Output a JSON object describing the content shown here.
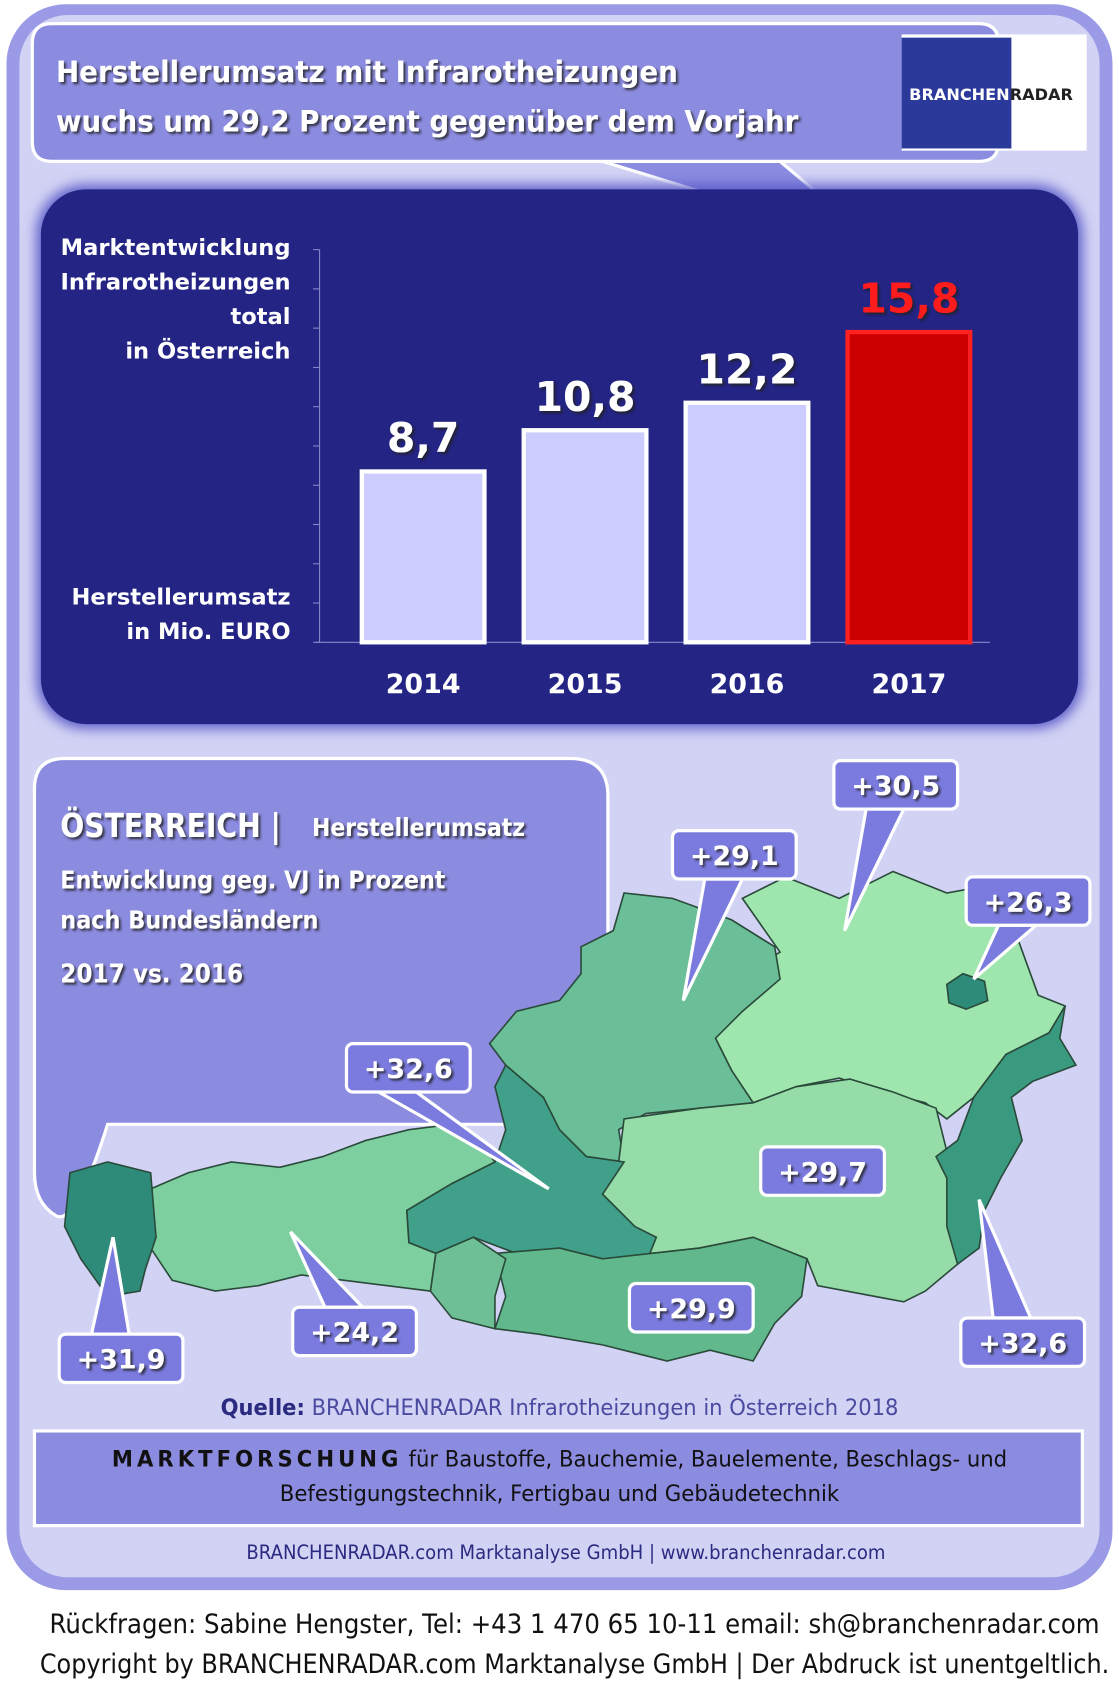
{
  "header": {
    "title": [
      "Herstellerumsatz mit Infrarotheizungen",
      "wuchs um 29,2 Prozent gegenüber dem Vorjahr"
    ],
    "logo": [
      "BRANCHEN",
      "RADAR"
    ]
  },
  "chart_data": {
    "type": "bar",
    "subtitle": [
      "Marktentwicklung",
      "Infrarotheizungen",
      "total",
      "in Österreich"
    ],
    "y_label": [
      "Herstellerumsatz",
      "in Mio. EURO"
    ],
    "categories": [
      "2014",
      "2015",
      "2016",
      "2017"
    ],
    "values": [
      8.7,
      10.8,
      12.2,
      15.8
    ],
    "value_labels": [
      "8,7",
      "10,8",
      "12,2",
      "15,8"
    ],
    "colors": [
      "#ccccff",
      "#ccccff",
      "#ccccff",
      "#cc0000"
    ],
    "ylim": [
      0,
      20
    ],
    "yticks": [
      0,
      2,
      4,
      6,
      8,
      10,
      12,
      14,
      16,
      18,
      20
    ]
  },
  "map": {
    "title": "ÖSTERREICH |",
    "title_suffix": "Herstellerumsatz",
    "subtitle": [
      "Entwicklung  geg. VJ in Prozent",
      "nach Bundesländern"
    ],
    "period": "2017 vs. 2016",
    "labels": [
      "+31,9",
      "+24,2",
      "+32,6",
      "+29,1",
      "+30,5",
      "+26,3",
      "+29,7",
      "+29,9",
      "+32,6"
    ]
  },
  "footer": {
    "source_label": "Quelle:",
    "source": " BRANCHENRADAR Infrarotheizungen in Österreich 2018",
    "research_label": "MARKTFORSCHUNG",
    "research_text": [
      "für Baustoffe, Bauchemie, Bauelemente, Beschlags- und",
      "Befestigungstechnik, Fertigbau und Gebäudetechnik"
    ],
    "company": "BRANCHENRADAR.com Marktanalyse GmbH | www.branchenradar.com",
    "contact": "Rückfragen: Sabine Hengster, Tel: +43 1 470 65 10-11 email: sh@branchenradar.com",
    "copyright": "Copyright by BRANCHENRADAR.com  Marktanalyse GmbH | Der Abdruck ist unentgeltlich."
  }
}
